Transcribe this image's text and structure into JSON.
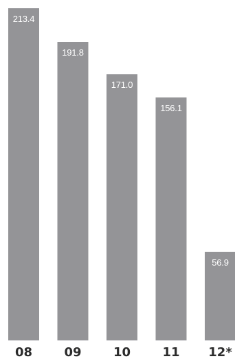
{
  "chart_data": {
    "type": "bar",
    "categories": [
      "08",
      "09",
      "10",
      "11",
      "12*"
    ],
    "values": [
      213.4,
      191.8,
      171.0,
      156.1,
      56.9
    ],
    "value_labels": [
      "213.4",
      "191.8",
      "171.0",
      "156.1",
      "56.9"
    ],
    "title": "",
    "xlabel": "",
    "ylabel": "",
    "ylim": [
      0,
      213.4
    ],
    "grid": false,
    "legend": "none",
    "bar_color": "#949497",
    "value_label_color": "#ffffff",
    "tick_label_color": "#2b2b2b"
  }
}
